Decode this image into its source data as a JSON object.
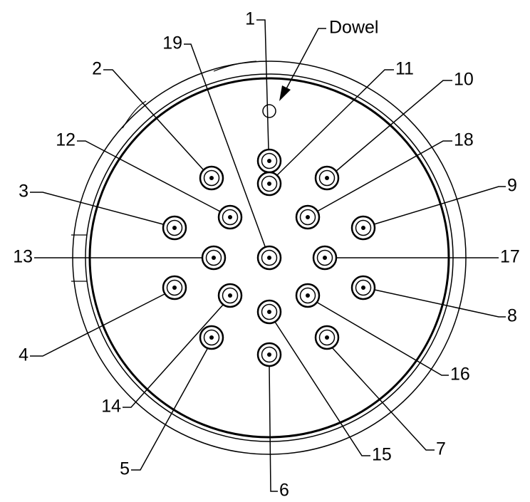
{
  "dowel_label": "Dowel",
  "pins": [
    "1",
    "2",
    "3",
    "4",
    "5",
    "6",
    "7",
    "8",
    "9",
    "10",
    "11",
    "12",
    "13",
    "14",
    "15",
    "16",
    "17",
    "18",
    "19"
  ]
}
